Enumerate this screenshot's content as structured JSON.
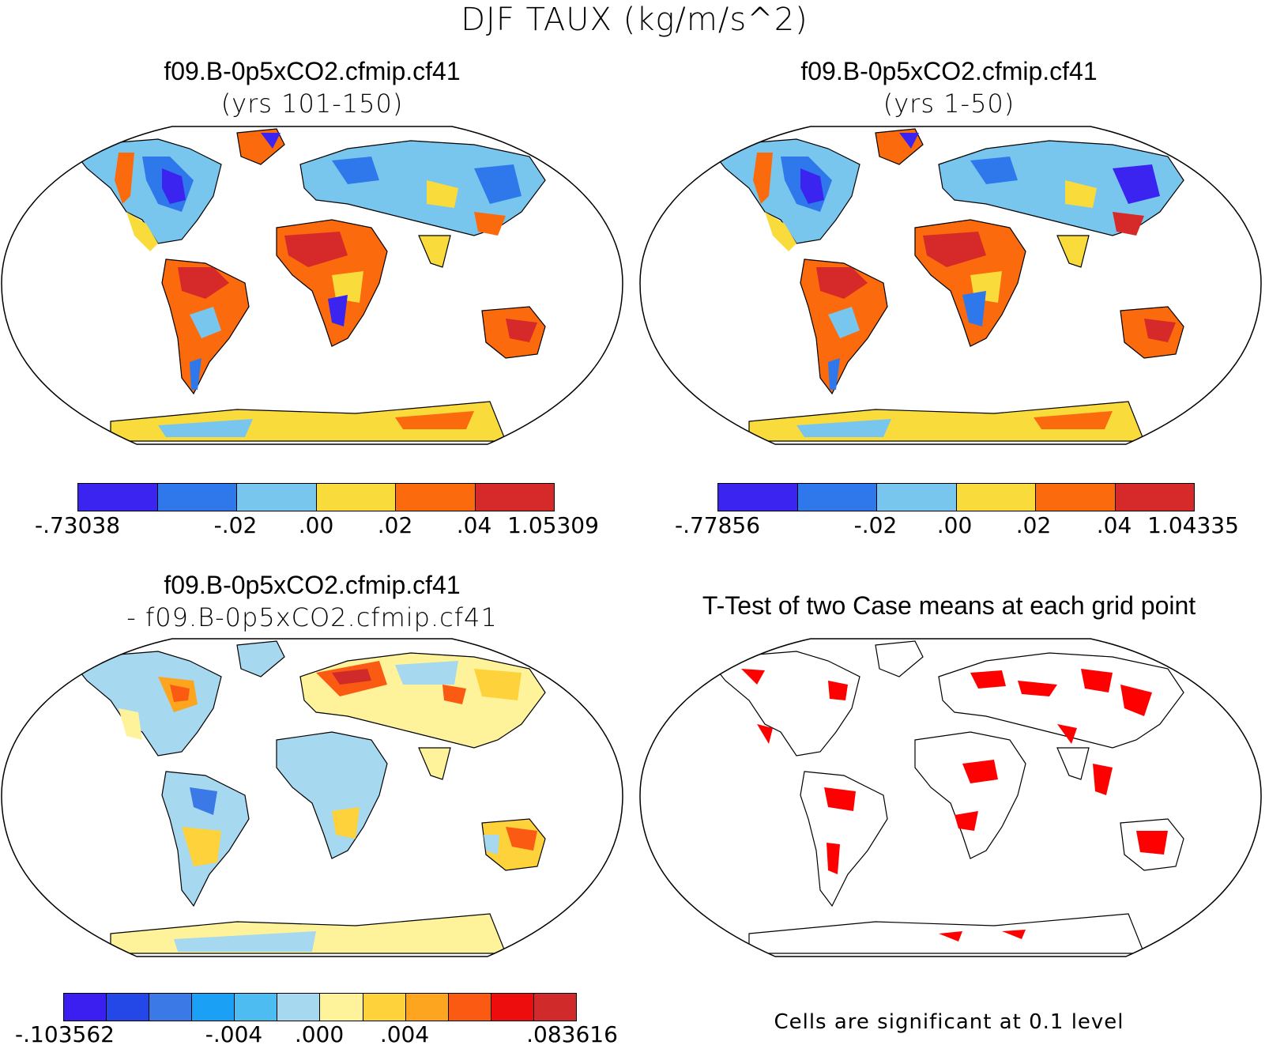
{
  "figure_title": "DJF TAUX (kg/m/s^2)",
  "panels": [
    {
      "title": "f09.B-0p5xCO2.cfmip.cf41",
      "subtitle": "(yrs 101-150)",
      "colorbar": {
        "colors": [
          "#3b24f0",
          "#2e78ec",
          "#78c6ee",
          "#fadb3c",
          "#fb6a0c",
          "#d6292a"
        ],
        "labels": [
          "-.73038",
          "-.02",
          ".00",
          ".02",
          ".04",
          "1.05309"
        ]
      }
    },
    {
      "title": "f09.B-0p5xCO2.cfmip.cf41",
      "subtitle": "(yrs 1-50)",
      "colorbar": {
        "colors": [
          "#3b24f0",
          "#2e78ec",
          "#78c6ee",
          "#fadb3c",
          "#fb6a0c",
          "#d6292a"
        ],
        "labels": [
          "-.77856",
          "-.02",
          ".00",
          ".02",
          ".04",
          "1.04335"
        ]
      }
    },
    {
      "title": "f09.B-0p5xCO2.cfmip.cf41",
      "subtitle": "- f09.B-0p5xCO2.cfmip.cf41",
      "colorbar": {
        "colors": [
          "#3a1ff0",
          "#2448e8",
          "#3a79e6",
          "#1aa0f5",
          "#4dbcf0",
          "#a6d8f0",
          "#fef39a",
          "#fdd23a",
          "#fda51e",
          "#fb5a12",
          "#ee0d0d",
          "#d12a2a"
        ],
        "labels": [
          "-.103562",
          "-.004",
          ".000",
          ".004",
          ".083616"
        ]
      }
    },
    {
      "title": "T-Test of two Case means at each grid point",
      "note": "Cells are significant at 0.1 level"
    }
  ]
}
